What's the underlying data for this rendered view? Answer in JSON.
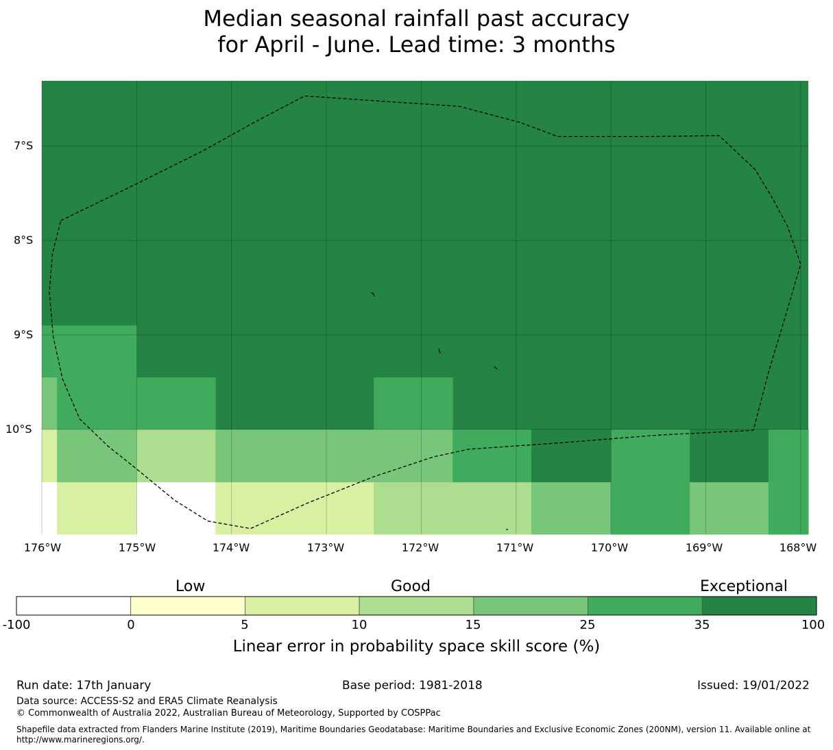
{
  "title": {
    "line1": "Median seasonal rainfall past accuracy",
    "line2": "for April - June. Lead time: 3 months"
  },
  "map": {
    "lat_labels": [
      "7°S",
      "8°S",
      "9°S",
      "10°S"
    ],
    "lon_labels": [
      "176°W",
      "175°W",
      "174°W",
      "173°W",
      "172°W",
      "171°W",
      "170°W",
      "169°W",
      "168°W"
    ],
    "extent": {
      "lon_min": -176.0,
      "lon_max": -167.92,
      "lat_north": -6.31,
      "lat_south": -11.11
    },
    "colors": {
      "exceptional_dark": "#238443",
      "band_25_35": "#41ab5d",
      "band_15_25": "#78c679",
      "band_10_15": "#addd8e",
      "band_5_10": "#d9f0a3",
      "band_0_5": "#ffffcc",
      "band_neg": "#ffffff"
    },
    "skill_cells": [
      {
        "lon": [
          -176.0,
          -175.0
        ],
        "lat": [
          -8.9,
          -9.45
        ],
        "category": "25-35"
      },
      {
        "lon": [
          -176.0,
          -175.84
        ],
        "lat": [
          -9.45,
          -10.0
        ],
        "category": "15-25"
      },
      {
        "lon": [
          -175.84,
          -175.0
        ],
        "lat": [
          -9.45,
          -10.0
        ],
        "category": "25-35"
      },
      {
        "lon": [
          -175.0,
          -174.17
        ],
        "lat": [
          -9.45,
          -10.0
        ],
        "category": "25-35"
      },
      {
        "lon": [
          -172.5,
          -171.67
        ],
        "lat": [
          -9.45,
          -10.0
        ],
        "category": "25-35"
      },
      {
        "lon": [
          -176.0,
          -175.84
        ],
        "lat": [
          -10.0,
          -10.56
        ],
        "category": "5-10"
      },
      {
        "lon": [
          -175.84,
          -175.0
        ],
        "lat": [
          -10.0,
          -10.56
        ],
        "category": "15-25"
      },
      {
        "lon": [
          -175.0,
          -174.17
        ],
        "lat": [
          -10.0,
          -10.56
        ],
        "category": "10-15"
      },
      {
        "lon": [
          -174.17,
          -171.67
        ],
        "lat": [
          -10.0,
          -10.56
        ],
        "category": "15-25"
      },
      {
        "lon": [
          -171.67,
          -170.84
        ],
        "lat": [
          -10.0,
          -10.56
        ],
        "category": "25-35"
      },
      {
        "lon": [
          -170.84,
          -170.0
        ],
        "lat": [
          -10.0,
          -10.56
        ],
        "category": "35-100"
      },
      {
        "lon": [
          -170.0,
          -169.17
        ],
        "lat": [
          -10.0,
          -10.56
        ],
        "category": "25-35"
      },
      {
        "lon": [
          -169.17,
          -168.34
        ],
        "lat": [
          -10.0,
          -10.56
        ],
        "category": "35-100"
      },
      {
        "lon": [
          -168.34,
          -167.92
        ],
        "lat": [
          -10.0,
          -10.56
        ],
        "category": "25-35"
      },
      {
        "lon": [
          -176.0,
          -175.84
        ],
        "lat": [
          -10.56,
          -11.11
        ],
        "category": "none"
      },
      {
        "lon": [
          -175.84,
          -175.0
        ],
        "lat": [
          -10.56,
          -11.11
        ],
        "category": "5-10"
      },
      {
        "lon": [
          -175.0,
          -174.17
        ],
        "lat": [
          -10.56,
          -11.11
        ],
        "category": "-100-0"
      },
      {
        "lon": [
          -174.17,
          -172.5
        ],
        "lat": [
          -10.56,
          -11.11
        ],
        "category": "5-10"
      },
      {
        "lon": [
          -172.5,
          -170.84
        ],
        "lat": [
          -10.56,
          -11.11
        ],
        "category": "10-15"
      },
      {
        "lon": [
          -170.84,
          -170.0
        ],
        "lat": [
          -10.56,
          -11.11
        ],
        "category": "15-25"
      },
      {
        "lon": [
          -170.0,
          -169.17
        ],
        "lat": [
          -10.56,
          -11.11
        ],
        "category": "25-35"
      },
      {
        "lon": [
          -169.17,
          -168.34
        ],
        "lat": [
          -10.56,
          -11.11
        ],
        "category": "15-25"
      },
      {
        "lon": [
          -168.34,
          -167.92
        ],
        "lat": [
          -10.56,
          -11.11
        ],
        "category": "25-35"
      }
    ],
    "boundary_lonlat": [
      [
        -175.8,
        -7.79
      ],
      [
        -175.0,
        -7.4
      ],
      [
        -174.3,
        -7.05
      ],
      [
        -173.78,
        -6.76
      ],
      [
        -173.23,
        -6.47
      ],
      [
        -172.5,
        -6.52
      ],
      [
        -171.6,
        -6.58
      ],
      [
        -170.96,
        -6.75
      ],
      [
        -170.56,
        -6.9
      ],
      [
        -169.6,
        -6.9
      ],
      [
        -168.86,
        -6.89
      ],
      [
        -168.48,
        -7.25
      ],
      [
        -168.3,
        -7.55
      ],
      [
        -168.14,
        -7.85
      ],
      [
        -168.0,
        -8.25
      ],
      [
        -168.17,
        -8.83
      ],
      [
        -168.33,
        -9.36
      ],
      [
        -168.5,
        -10.01
      ],
      [
        -169.5,
        -10.06
      ],
      [
        -170.5,
        -10.14
      ],
      [
        -171.5,
        -10.21
      ],
      [
        -171.87,
        -10.29
      ],
      [
        -172.5,
        -10.5
      ],
      [
        -173.2,
        -10.78
      ],
      [
        -173.8,
        -11.05
      ],
      [
        -174.25,
        -10.97
      ],
      [
        -174.6,
        -10.75
      ],
      [
        -175.0,
        -10.42
      ],
      [
        -175.3,
        -10.18
      ],
      [
        -175.6,
        -9.89
      ],
      [
        -175.78,
        -9.47
      ],
      [
        -175.88,
        -9.02
      ],
      [
        -175.92,
        -8.55
      ],
      [
        -175.89,
        -8.15
      ],
      [
        -175.8,
        -7.79
      ]
    ]
  },
  "legend": {
    "labels": {
      "low": "Low",
      "good": "Good",
      "exceptional": "Exceptional"
    },
    "ticks": [
      "-100",
      "0",
      "5",
      "10",
      "15",
      "25",
      "35",
      "100"
    ],
    "colors": [
      "#ffffff",
      "#ffffcc",
      "#d9f0a3",
      "#addd8e",
      "#78c679",
      "#41ab5d",
      "#238443"
    ],
    "axis_title": "Linear error in probability space skill score (%)"
  },
  "footer": {
    "run_date": "Run date: 17th January",
    "base_period": "Base period: 1981-2018",
    "issued": "Issued: 19/01/2022",
    "data_source": "Data source: ACCESS-S2 and ERA5 Climate Reanalysis",
    "copyright": "© Commonwealth of Australia 2022, Australian Bureau of Meteorology, Supported by COSPPac",
    "shapefile_line1": "Shapefile data extracted from Flanders Marine Institute (2019), Maritime Boundaries Geodatabase: Maritime Boundaries and Exclusive Economic Zones (200NM), version 11. Available online at",
    "shapefile_line2": "http://www.marineregions.org/."
  }
}
